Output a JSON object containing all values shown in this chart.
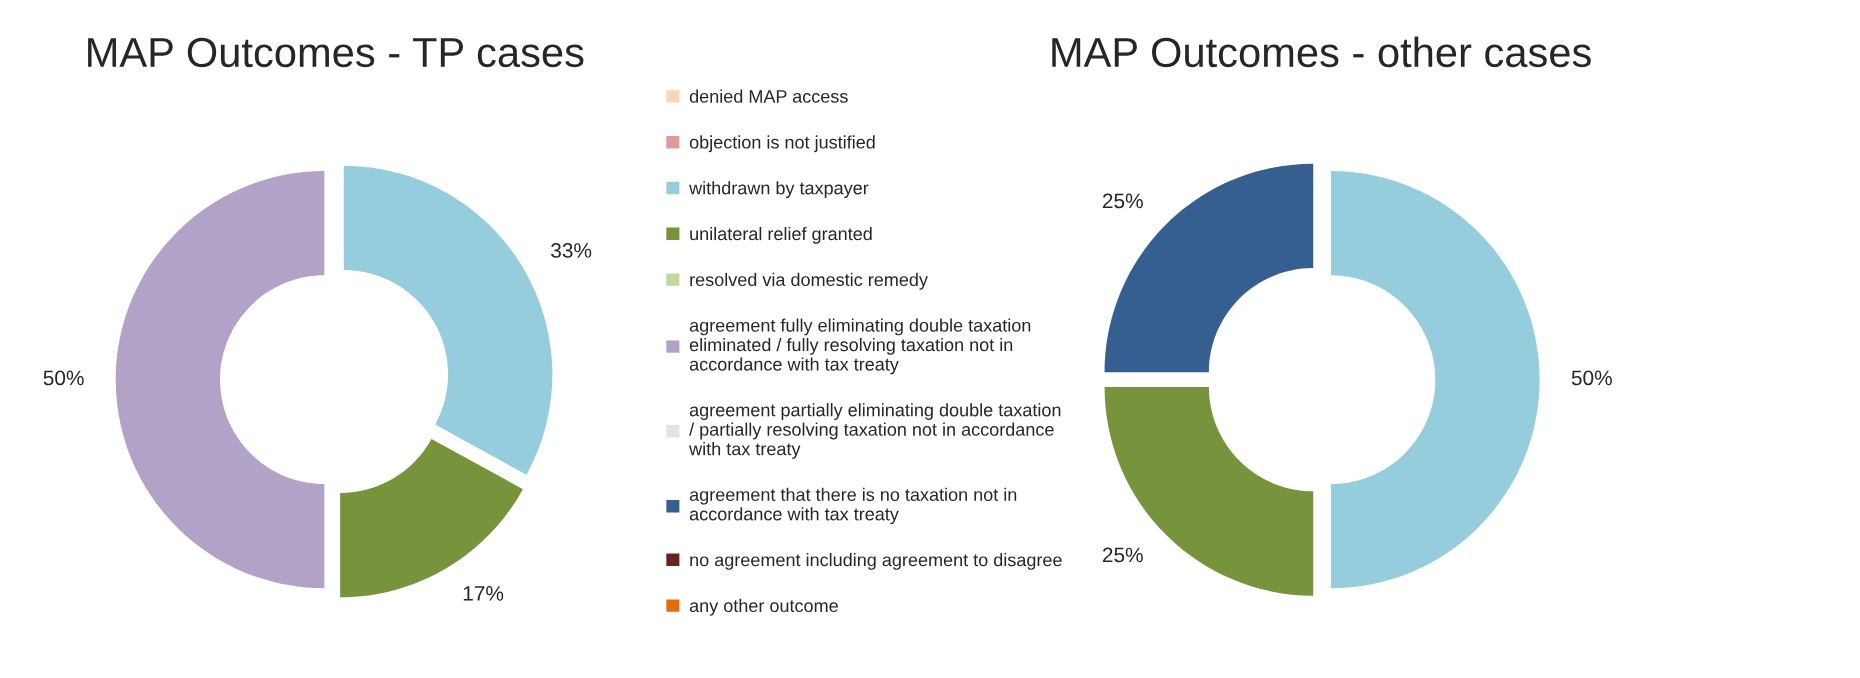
{
  "chart_data": [
    {
      "type": "donut",
      "title": "MAP Outcomes - TP cases",
      "legend": "right",
      "categories": [
        "denied MAP access",
        "objection is not justified",
        "withdrawn by taxpayer",
        "unilateral relief granted",
        "resolved via domestic remedy",
        "agreement fully eliminating double taxation eliminated / fully resolving taxation not in accordance with tax treaty",
        "agreement partially eliminating double taxation / partially resolving taxation not in accordance with tax treaty",
        "agreement that there is no taxation not in accordance with tax treaty",
        "no agreement including agreement to disagree",
        "any other outcome"
      ],
      "values": [
        0,
        0,
        33,
        17,
        0,
        50,
        0,
        0,
        0,
        0
      ],
      "value_labels": [
        null,
        null,
        "33%",
        "17%",
        null,
        "50%",
        null,
        null,
        null,
        null
      ],
      "colors": [
        "#fcd5b5",
        "#e09a9a",
        "#95cddd",
        "#77933c",
        "#c3d69b",
        "#b3a2c7",
        "#e3e0ec",
        "#355e91",
        "#632523",
        "#e46c0a"
      ]
    },
    {
      "type": "donut",
      "title": "MAP Outcomes - other cases",
      "legend": false,
      "categories": [
        null,
        null,
        null,
        null,
        null,
        null,
        null,
        null,
        null,
        null
      ],
      "values": [
        0,
        0,
        50,
        25,
        0,
        0,
        0,
        25,
        0,
        0
      ],
      "value_labels": [
        null,
        null,
        "50%",
        "25%",
        null,
        null,
        null,
        "25%",
        null,
        null
      ],
      "colors": [
        "#fcd5b5",
        "#e09a9a",
        "#95cddd",
        "#77933c",
        "#c3d69b",
        "#b3a2c7",
        "#e3e0ec",
        "#355e91",
        "#632523",
        "#e46c0a"
      ]
    }
  ]
}
